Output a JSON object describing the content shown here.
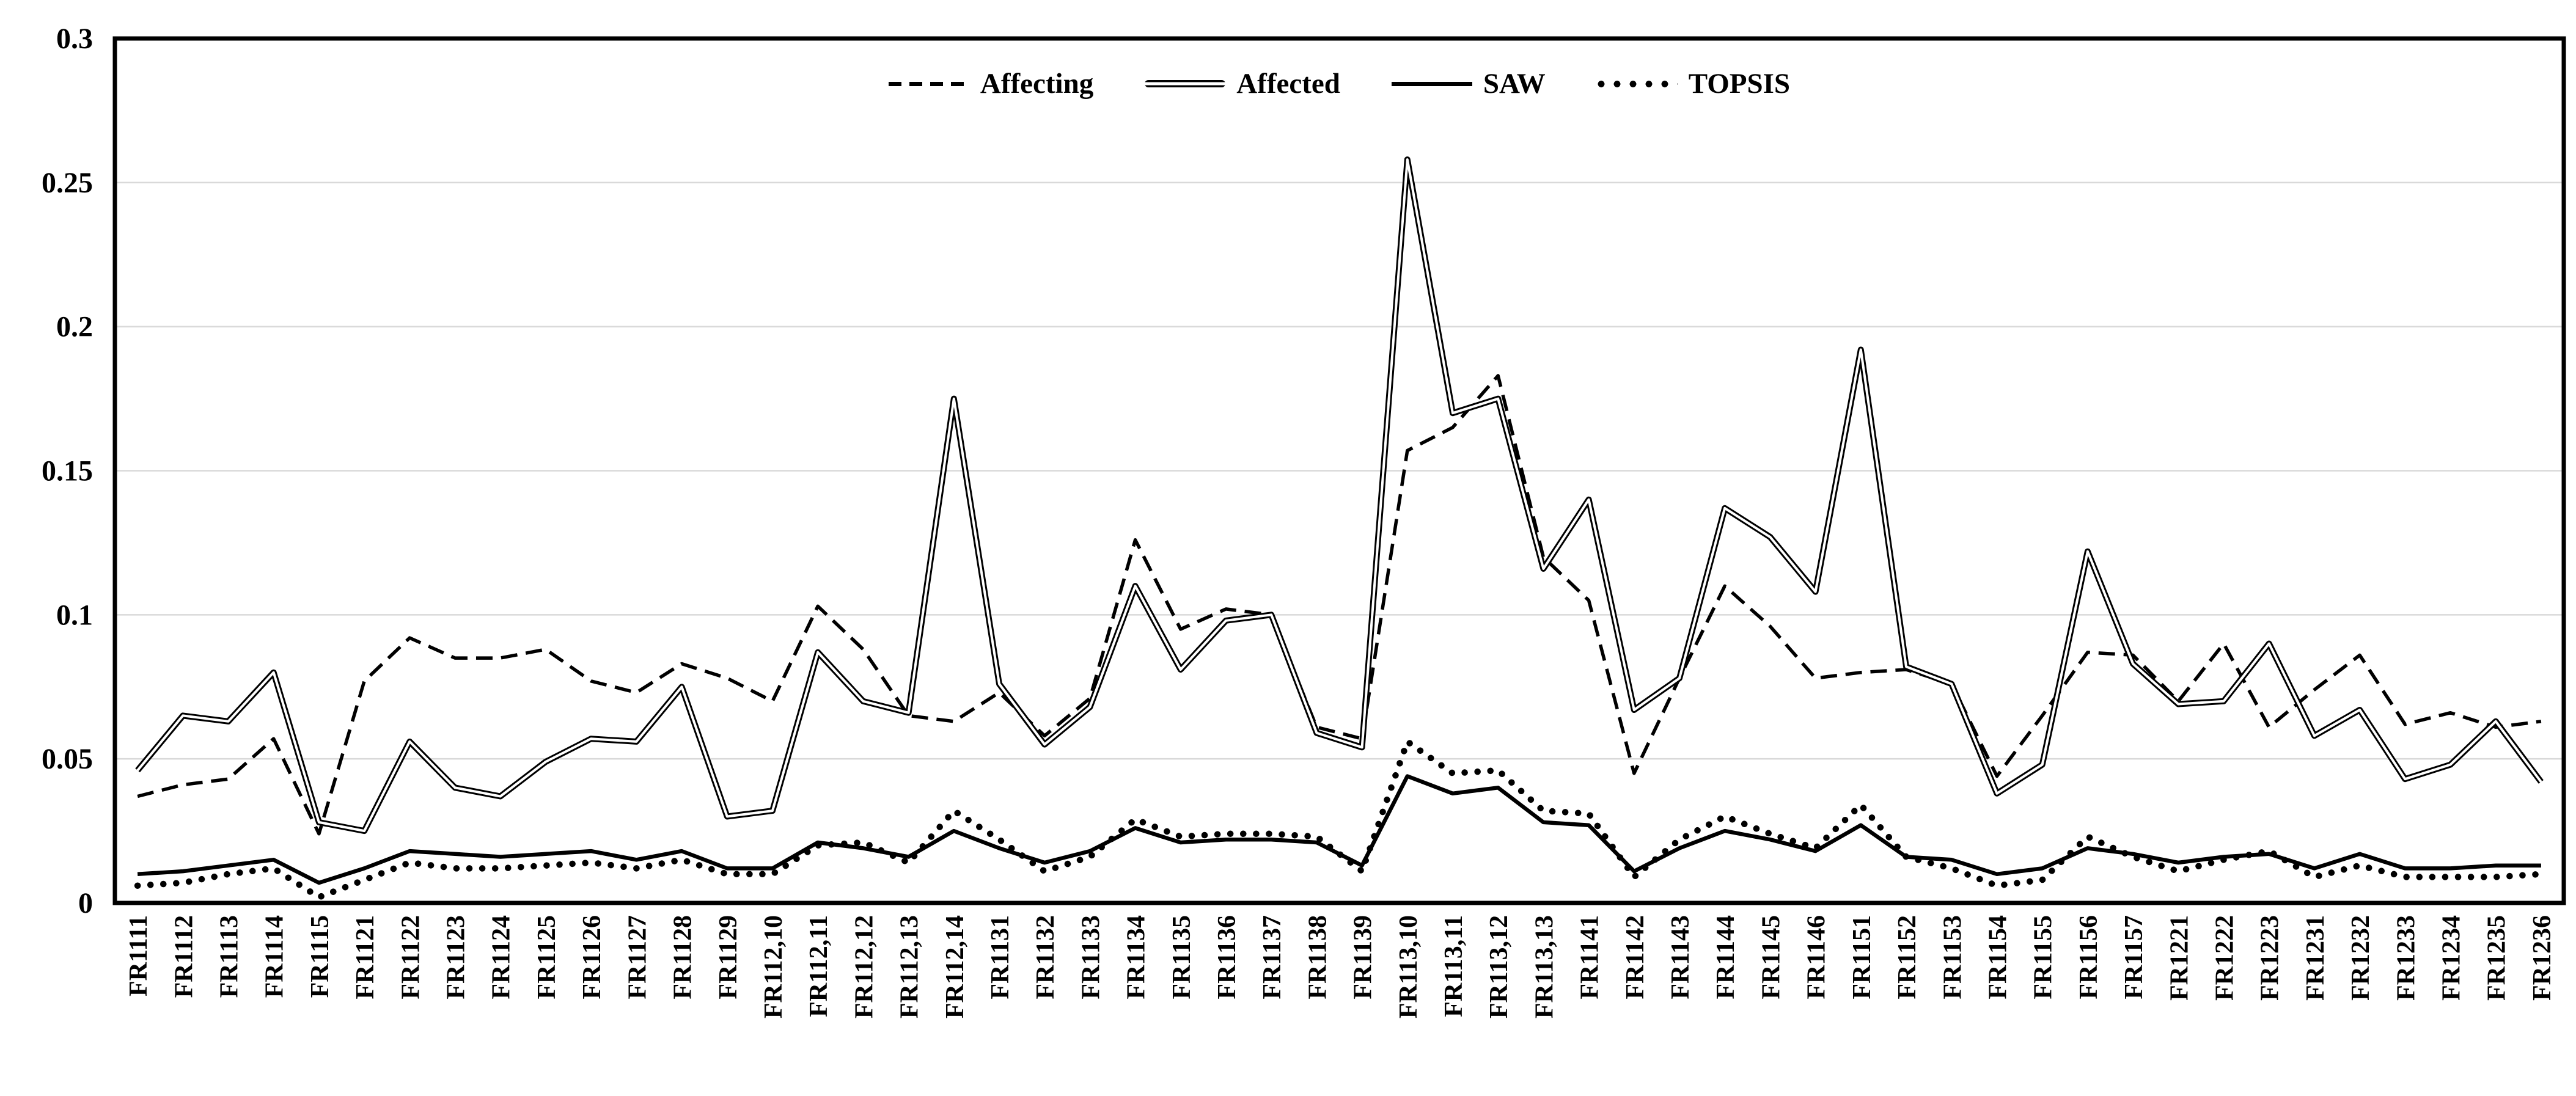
{
  "chart_data": {
    "type": "line",
    "title": "",
    "xlabel": "",
    "ylabel": "",
    "ylim": [
      0,
      0.3
    ],
    "yticks": [
      0,
      0.05,
      0.1,
      0.15,
      0.2,
      0.25,
      0.3
    ],
    "ytick_labels": [
      "0",
      "0.05",
      "0.1",
      "0.15",
      "0.2",
      "0.25",
      "0.3"
    ],
    "grid": true,
    "legend_position": "top-center",
    "colors": {
      "line": "#000000",
      "grid": "#d9d9d9",
      "background": "#ffffff",
      "border": "#000000"
    },
    "categories": [
      "FR1111",
      "FR1112",
      "FR1113",
      "FR1114",
      "FR1115",
      "FR1121",
      "FR1122",
      "FR1123",
      "FR1124",
      "FR1125",
      "FR1126",
      "FR1127",
      "FR1128",
      "FR1129",
      "FR112,10",
      "FR112,11",
      "FR112,12",
      "FR112,13",
      "FR112,14",
      "FR1131",
      "FR1132",
      "FR1133",
      "FR1134",
      "FR1135",
      "FR1136",
      "FR1137",
      "FR1138",
      "FR1139",
      "FR113,10",
      "FR113,11",
      "FR113,12",
      "FR113,13",
      "FR1141",
      "FR1142",
      "FR1143",
      "FR1144",
      "FR1145",
      "FR1146",
      "FR1151",
      "FR1152",
      "FR1153",
      "FR1154",
      "FR1155",
      "FR1156",
      "FR1157",
      "FR1221",
      "FR1222",
      "FR1223",
      "FR1231",
      "FR1232",
      "FR1233",
      "FR1234",
      "FR1235",
      "FR1236"
    ],
    "series": [
      {
        "name": "Affecting",
        "style": "dashed",
        "values": [
          0.037,
          0.041,
          0.043,
          0.057,
          0.024,
          0.077,
          0.092,
          0.085,
          0.085,
          0.088,
          0.077,
          0.073,
          0.083,
          0.078,
          0.07,
          0.103,
          0.088,
          0.065,
          0.063,
          0.073,
          0.058,
          0.071,
          0.126,
          0.095,
          0.102,
          0.1,
          0.061,
          0.057,
          0.157,
          0.165,
          0.183,
          0.12,
          0.105,
          0.045,
          0.078,
          0.11,
          0.096,
          0.078,
          0.08,
          0.081,
          0.076,
          0.044,
          0.065,
          0.087,
          0.086,
          0.07,
          0.09,
          0.061,
          0.074,
          0.086,
          0.062,
          0.066,
          0.061,
          0.063
        ]
      },
      {
        "name": "Affected",
        "style": "double",
        "values": [
          0.046,
          0.065,
          0.063,
          0.08,
          0.028,
          0.025,
          0.056,
          0.04,
          0.037,
          0.049,
          0.057,
          0.056,
          0.075,
          0.03,
          0.032,
          0.087,
          0.07,
          0.066,
          0.175,
          0.076,
          0.055,
          0.068,
          0.11,
          0.081,
          0.098,
          0.1,
          0.059,
          0.054,
          0.258,
          0.17,
          0.175,
          0.116,
          0.14,
          0.067,
          0.078,
          0.137,
          0.127,
          0.108,
          0.192,
          0.082,
          0.076,
          0.038,
          0.048,
          0.122,
          0.083,
          0.069,
          0.07,
          0.09,
          0.058,
          0.067,
          0.043,
          0.048,
          0.063,
          0.042
        ]
      },
      {
        "name": "SAW",
        "style": "solid",
        "values": [
          0.01,
          0.011,
          0.013,
          0.015,
          0.007,
          0.012,
          0.018,
          0.017,
          0.016,
          0.017,
          0.018,
          0.015,
          0.018,
          0.012,
          0.012,
          0.021,
          0.019,
          0.016,
          0.025,
          0.019,
          0.014,
          0.018,
          0.026,
          0.021,
          0.022,
          0.022,
          0.021,
          0.013,
          0.044,
          0.038,
          0.04,
          0.028,
          0.027,
          0.011,
          0.019,
          0.025,
          0.022,
          0.018,
          0.027,
          0.016,
          0.015,
          0.01,
          0.012,
          0.019,
          0.017,
          0.014,
          0.016,
          0.017,
          0.012,
          0.017,
          0.012,
          0.012,
          0.013,
          0.013
        ]
      },
      {
        "name": "TOPSIS",
        "style": "dotted",
        "values": [
          0.006,
          0.007,
          0.01,
          0.012,
          0.002,
          0.008,
          0.014,
          0.012,
          0.012,
          0.013,
          0.014,
          0.012,
          0.015,
          0.01,
          0.01,
          0.02,
          0.021,
          0.014,
          0.032,
          0.022,
          0.011,
          0.016,
          0.029,
          0.023,
          0.024,
          0.024,
          0.023,
          0.011,
          0.056,
          0.045,
          0.046,
          0.032,
          0.031,
          0.009,
          0.022,
          0.03,
          0.024,
          0.019,
          0.034,
          0.016,
          0.012,
          0.006,
          0.008,
          0.023,
          0.016,
          0.011,
          0.015,
          0.018,
          0.009,
          0.013,
          0.009,
          0.009,
          0.009,
          0.01
        ]
      }
    ]
  }
}
